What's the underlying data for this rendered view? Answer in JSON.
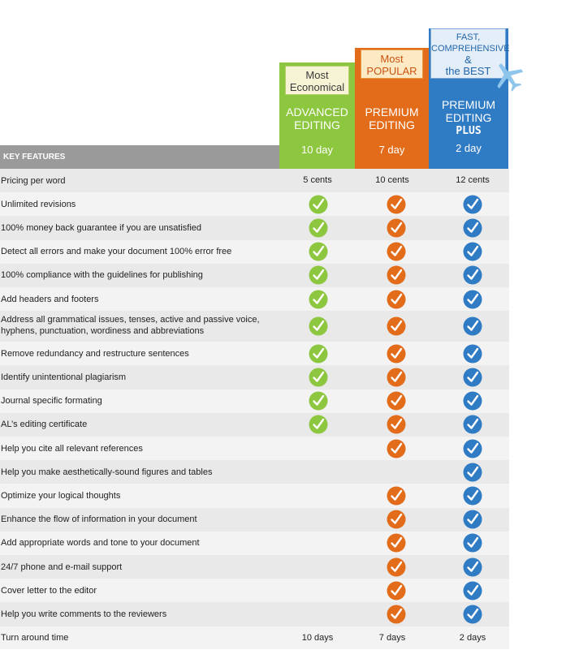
{
  "plans": [
    {
      "badge_lines": [
        "Most",
        "Economical"
      ],
      "name_lines": [
        "ADVANCED",
        "EDITING"
      ],
      "plus": "",
      "days": "10 day",
      "color": "#8dc63f"
    },
    {
      "badge_lines": [
        "Most",
        "POPULAR"
      ],
      "name_lines": [
        "PREMIUM",
        "EDITING"
      ],
      "plus": "",
      "days": "7 day",
      "color": "#e36c1a"
    },
    {
      "badge_lines": [
        "FAST,",
        "COMPREHENSIVE",
        "&",
        "the BEST"
      ],
      "name_lines": [
        "PREMIUM",
        "EDITING"
      ],
      "plus": "PLUS",
      "days": "2 day",
      "color": "#2f7bc4"
    }
  ],
  "badge_icon": "airplane-icon",
  "key_features_label": "KEY FEATURES",
  "check_icon": "checkmark-circle-icon",
  "rows": [
    {
      "label": "Pricing per word",
      "values": [
        "5 cents",
        "10 cents",
        "12 cents"
      ]
    },
    {
      "label": "Unlimited revisions",
      "checks": [
        true,
        true,
        true
      ]
    },
    {
      "label": "100% money back guarantee if you are unsatisfied",
      "checks": [
        true,
        true,
        true
      ]
    },
    {
      "label": "Detect all errors and make your document 100% error free",
      "checks": [
        true,
        true,
        true
      ]
    },
    {
      "label": "100% compliance with the guidelines for publishing",
      "checks": [
        true,
        true,
        true
      ]
    },
    {
      "label": "Add headers and footers",
      "checks": [
        true,
        true,
        true
      ]
    },
    {
      "label": "Address all grammatical issues, tenses, active and passive voice, hyphens, punctuation, wordiness and abbreviations",
      "checks": [
        true,
        true,
        true
      ],
      "tall": true
    },
    {
      "label": "Remove redundancy and restructure sentences",
      "checks": [
        true,
        true,
        true
      ]
    },
    {
      "label": "Identify unintentional plagiarism",
      "checks": [
        true,
        true,
        true
      ]
    },
    {
      "label": "Journal specific formating",
      "checks": [
        true,
        true,
        true
      ]
    },
    {
      "label": "AL’s editing certificate",
      "checks": [
        true,
        true,
        true
      ]
    },
    {
      "label": "Help you cite all relevant references",
      "checks": [
        false,
        true,
        true
      ]
    },
    {
      "label": "Help you make aesthetically-sound figures and tables",
      "checks": [
        false,
        false,
        true
      ]
    },
    {
      "label": "Optimize your logical thoughts",
      "checks": [
        false,
        true,
        true
      ]
    },
    {
      "label": "Enhance the flow of information in your document",
      "checks": [
        false,
        true,
        true
      ]
    },
    {
      "label": "Add appropriate words and tone to your document",
      "checks": [
        false,
        true,
        true
      ]
    },
    {
      "label": "24/7 phone and e-mail support",
      "checks": [
        false,
        true,
        true
      ]
    },
    {
      "label": "Cover letter to the editor",
      "checks": [
        false,
        true,
        true
      ]
    },
    {
      "label": "Help you write comments to the reviewers",
      "checks": [
        false,
        true,
        true
      ]
    },
    {
      "label": "Turn around time",
      "values": [
        "10 days",
        "7 days",
        "2 days"
      ]
    }
  ]
}
